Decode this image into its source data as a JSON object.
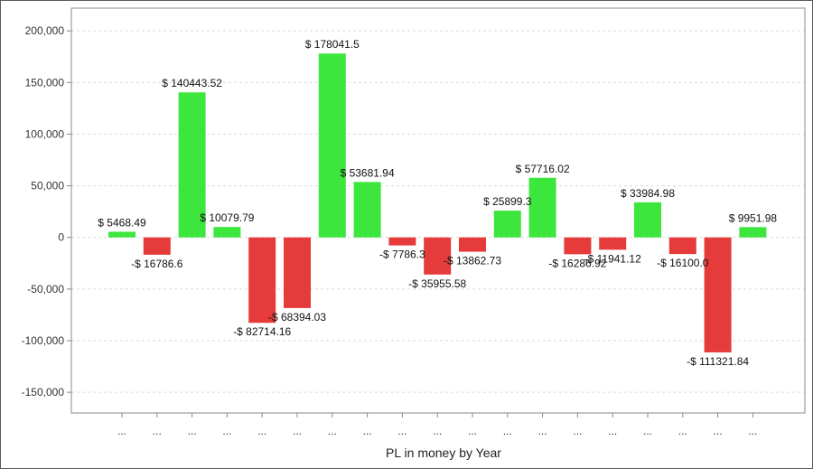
{
  "chart_data": {
    "type": "bar",
    "title": "",
    "xlabel": "PL in money by Year",
    "ylabel": "",
    "ylim": [
      -170000,
      222000
    ],
    "yticks": [
      -150000,
      -100000,
      -50000,
      0,
      50000,
      100000,
      150000,
      200000
    ],
    "ytick_labels": [
      "-150,000",
      "-100,000",
      "-50,000",
      "0",
      "50,000",
      "100,000",
      "150,000",
      "200,000"
    ],
    "grid": true,
    "legend": "none",
    "categories": [
      "...",
      "...",
      "...",
      "...",
      "...",
      "...",
      "...",
      "...",
      "...",
      "...",
      "...",
      "...",
      "...",
      "...",
      "...",
      "...",
      "...",
      "...",
      "..."
    ],
    "values": [
      5468.49,
      -16786.6,
      140443.52,
      10079.79,
      -82714.16,
      -68394.03,
      178041.5,
      53681.94,
      -7786.3,
      -35955.58,
      -13862.73,
      25899.3,
      57716.02,
      -16286.92,
      -11941.12,
      33984.98,
      -16100.0,
      -111321.84,
      9951.98
    ],
    "data_labels": [
      "$ 5468.49",
      "-$ 16786.6",
      "$ 140443.52",
      "$ 10079.79",
      "-$ 82714.16",
      "-$ 68394.03",
      "$ 178041.5",
      "$ 53681.94",
      "-$ 7786.3",
      "-$ 35955.58",
      "-$ 13862.73",
      "$ 25899.3",
      "$ 57716.02",
      "-$ 16286.92",
      "-$ 11941.12",
      "$ 33984.98",
      "-$ 16100.0",
      "-$ 111321.84",
      "$ 9951.98"
    ],
    "colors": {
      "positive": "#3de63d",
      "negative": "#e63b3b",
      "grid": "#d9d9d9",
      "axis": "#888888"
    }
  }
}
